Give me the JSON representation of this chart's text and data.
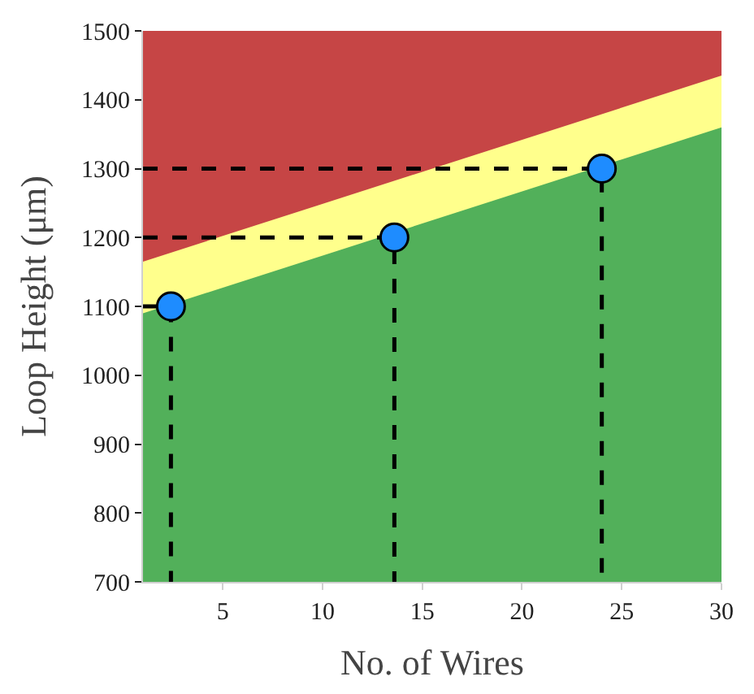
{
  "chart_data": {
    "type": "area",
    "xlabel": "No. of Wires",
    "ylabel": "Loop Height (μm)",
    "x": [
      1,
      30
    ],
    "series": [
      {
        "color": "#c64545",
        "values": [
          1500,
          1500
        ]
      },
      {
        "color": "#ffff8c",
        "values": [
          1165,
          1435
        ]
      },
      {
        "color": "#52b05a",
        "values": [
          1090,
          1360
        ]
      },
      {
        "type": "line",
        "line_style": "dashed",
        "color": "#000000",
        "x": [
          1,
          2.4,
          2.4
        ],
        "values": [
          1100,
          1100,
          700
        ]
      },
      {
        "type": "line",
        "line_style": "dashed",
        "color": "#000000",
        "x": [
          1,
          13.6,
          13.6
        ],
        "values": [
          1200,
          1200,
          700
        ]
      },
      {
        "type": "line",
        "line_style": "dashed",
        "color": "#000000",
        "x": [
          1,
          24,
          24
        ],
        "values": [
          1300,
          1300,
          700
        ]
      },
      {
        "type": "scatter",
        "marker": "circle",
        "color": "#1e8cff",
        "x": [
          2.4,
          13.6,
          24
        ],
        "values": [
          1100,
          1200,
          1300
        ]
      }
    ],
    "xlim": [
      1,
      30
    ],
    "xticks": [
      5,
      10,
      15,
      20,
      25,
      30
    ],
    "ylim": [
      700,
      1500
    ],
    "yticks": [
      700,
      800,
      900,
      1000,
      1100,
      1200,
      1300,
      1400,
      1500
    ]
  }
}
